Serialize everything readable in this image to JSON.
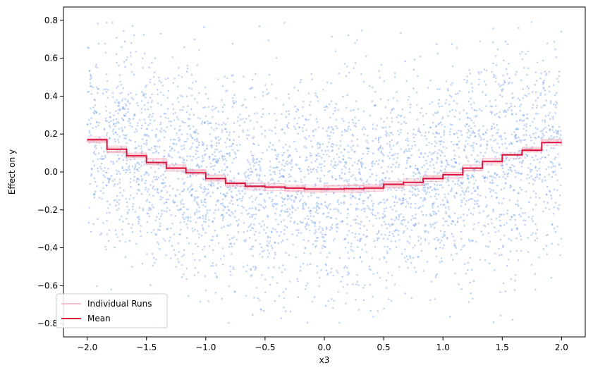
{
  "chart_data": {
    "type": "line",
    "xlabel": "x3",
    "ylabel": "Effect on y",
    "xlim": [
      -2.2,
      2.2
    ],
    "ylim": [
      -0.87,
      0.87
    ],
    "x_ticks": [
      -2.0,
      -1.5,
      -1.0,
      -0.5,
      0.0,
      0.5,
      1.0,
      1.5,
      2.0
    ],
    "x_tick_labels": [
      "−2.0",
      "−1.5",
      "−1.0",
      "−0.5",
      "0.0",
      "0.5",
      "1.0",
      "1.5",
      "2.0"
    ],
    "y_ticks": [
      -0.8,
      -0.6,
      -0.4,
      -0.2,
      0.0,
      0.2,
      0.4,
      0.6,
      0.8
    ],
    "y_tick_labels": [
      "−0.8",
      "−0.6",
      "−0.4",
      "−0.2",
      "0.0",
      "0.2",
      "0.4",
      "0.6",
      "0.8"
    ],
    "grid": false,
    "legend": {
      "position": "lower-left",
      "entries": [
        "Individual Runs",
        "Mean"
      ]
    },
    "colors": {
      "scatter": "#6495ED",
      "individual_runs": "#F4A6B8",
      "mean": "#DC143C"
    },
    "series": [
      {
        "name": "Mean",
        "style": "step",
        "x": [
          -2.0,
          -1.833,
          -1.667,
          -1.5,
          -1.333,
          -1.167,
          -1.0,
          -0.833,
          -0.667,
          -0.5,
          -0.333,
          -0.167,
          0.0,
          0.167,
          0.333,
          0.5,
          0.667,
          0.833,
          1.0,
          1.167,
          1.333,
          1.5,
          1.667,
          1.833,
          2.0
        ],
        "y": [
          0.17,
          0.12,
          0.085,
          0.05,
          0.02,
          -0.005,
          -0.035,
          -0.06,
          -0.075,
          -0.08,
          -0.085,
          -0.09,
          -0.09,
          -0.088,
          -0.085,
          -0.065,
          -0.055,
          -0.035,
          -0.015,
          0.02,
          0.055,
          0.09,
          0.115,
          0.155,
          0.155
        ]
      },
      {
        "name": "Individual Runs",
        "style": "step-band",
        "spread": 0.02
      }
    ],
    "scatter": {
      "count": 4000,
      "x_range": [
        -2.0,
        2.0
      ],
      "y_noise_sd": 0.28,
      "y_range": [
        -0.8,
        0.8
      ]
    }
  }
}
